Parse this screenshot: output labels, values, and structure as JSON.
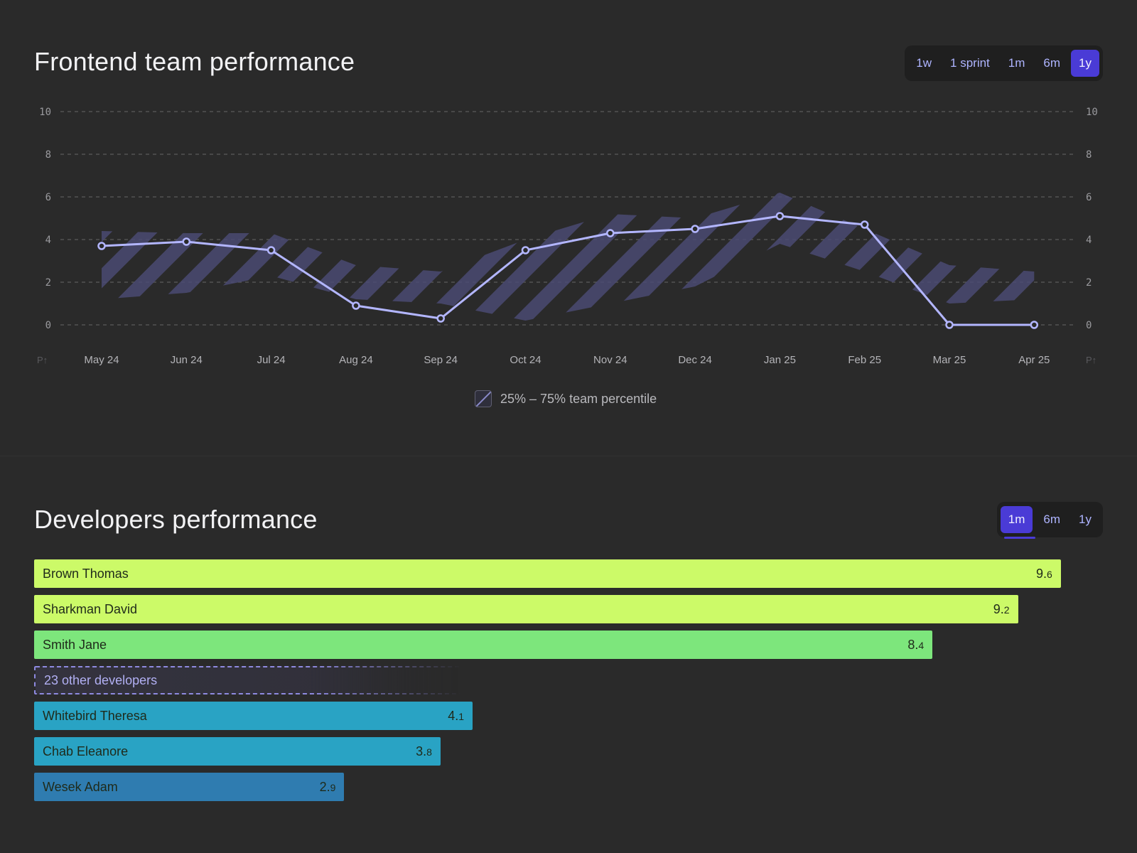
{
  "top": {
    "title": "Frontend team performance",
    "ranges": [
      {
        "label": "1w",
        "active": false
      },
      {
        "label": "1 sprint",
        "active": false
      },
      {
        "label": "1m",
        "active": false
      },
      {
        "label": "6m",
        "active": false
      },
      {
        "label": "1y",
        "active": true
      }
    ],
    "legend_label": "25% – 75% team percentile",
    "corner_label": "P↑"
  },
  "chart_data": [
    {
      "type": "line",
      "title": "Frontend team performance",
      "x": [
        "May 24",
        "Jun 24",
        "Jul 24",
        "Aug 24",
        "Sep 24",
        "Oct 24",
        "Nov 24",
        "Dec 24",
        "Jan 25",
        "Feb 25",
        "Mar 25",
        "Apr 25"
      ],
      "series": [
        {
          "values": [
            3.7,
            3.9,
            3.5,
            0.9,
            0.3,
            3.5,
            4.3,
            4.5,
            5.1,
            4.7,
            0.0,
            0.0
          ]
        }
      ],
      "band": {
        "name": "25% – 75% team percentile",
        "low": [
          1.2,
          1.5,
          2.3,
          1.2,
          1.0,
          0.2,
          1.0,
          1.8,
          3.8,
          2.5,
          1.0,
          1.2
        ],
        "high": [
          4.4,
          4.3,
          4.3,
          2.8,
          2.5,
          4.0,
          5.2,
          5.0,
          6.2,
          4.5,
          2.8,
          2.5
        ]
      },
      "ylim": [
        0,
        10
      ],
      "yticks": [
        0,
        2,
        4,
        6,
        8,
        10
      ],
      "grid": true,
      "legend": "bottom-center",
      "colors": {
        "line": "#b3b6ff",
        "band": "#4a4a72",
        "grid": "#5a5a5a"
      }
    },
    {
      "type": "bar",
      "orientation": "horizontal",
      "title": "Developers performance",
      "categories": [
        "Brown Thomas",
        "Sharkman David",
        "Smith Jane",
        "23 other developers",
        "Whitebird Theresa",
        "Chab Eleanore",
        "Wesek Adam"
      ],
      "values": [
        9.6,
        9.2,
        8.4,
        null,
        4.1,
        3.8,
        2.9
      ],
      "value_labels": [
        {
          "whole": "9.",
          "frac": "6"
        },
        {
          "whole": "9.",
          "frac": "2"
        },
        {
          "whole": "8.",
          "frac": "4"
        },
        null,
        {
          "whole": "4.",
          "frac": "1"
        },
        {
          "whole": "3.",
          "frac": "8"
        },
        {
          "whole": "2.",
          "frac": "9"
        }
      ],
      "colors": [
        "#ccfa68",
        "#ccfa68",
        "#7de67c",
        "#35343f",
        "#29a3c4",
        "#29a3c4",
        "#2f7cb0"
      ],
      "xlim": [
        0,
        10
      ]
    }
  ],
  "developers": {
    "title": "Developers performance",
    "ranges": [
      {
        "label": "1m",
        "active": true
      },
      {
        "label": "6m",
        "active": false
      },
      {
        "label": "1y",
        "active": false
      }
    ]
  }
}
